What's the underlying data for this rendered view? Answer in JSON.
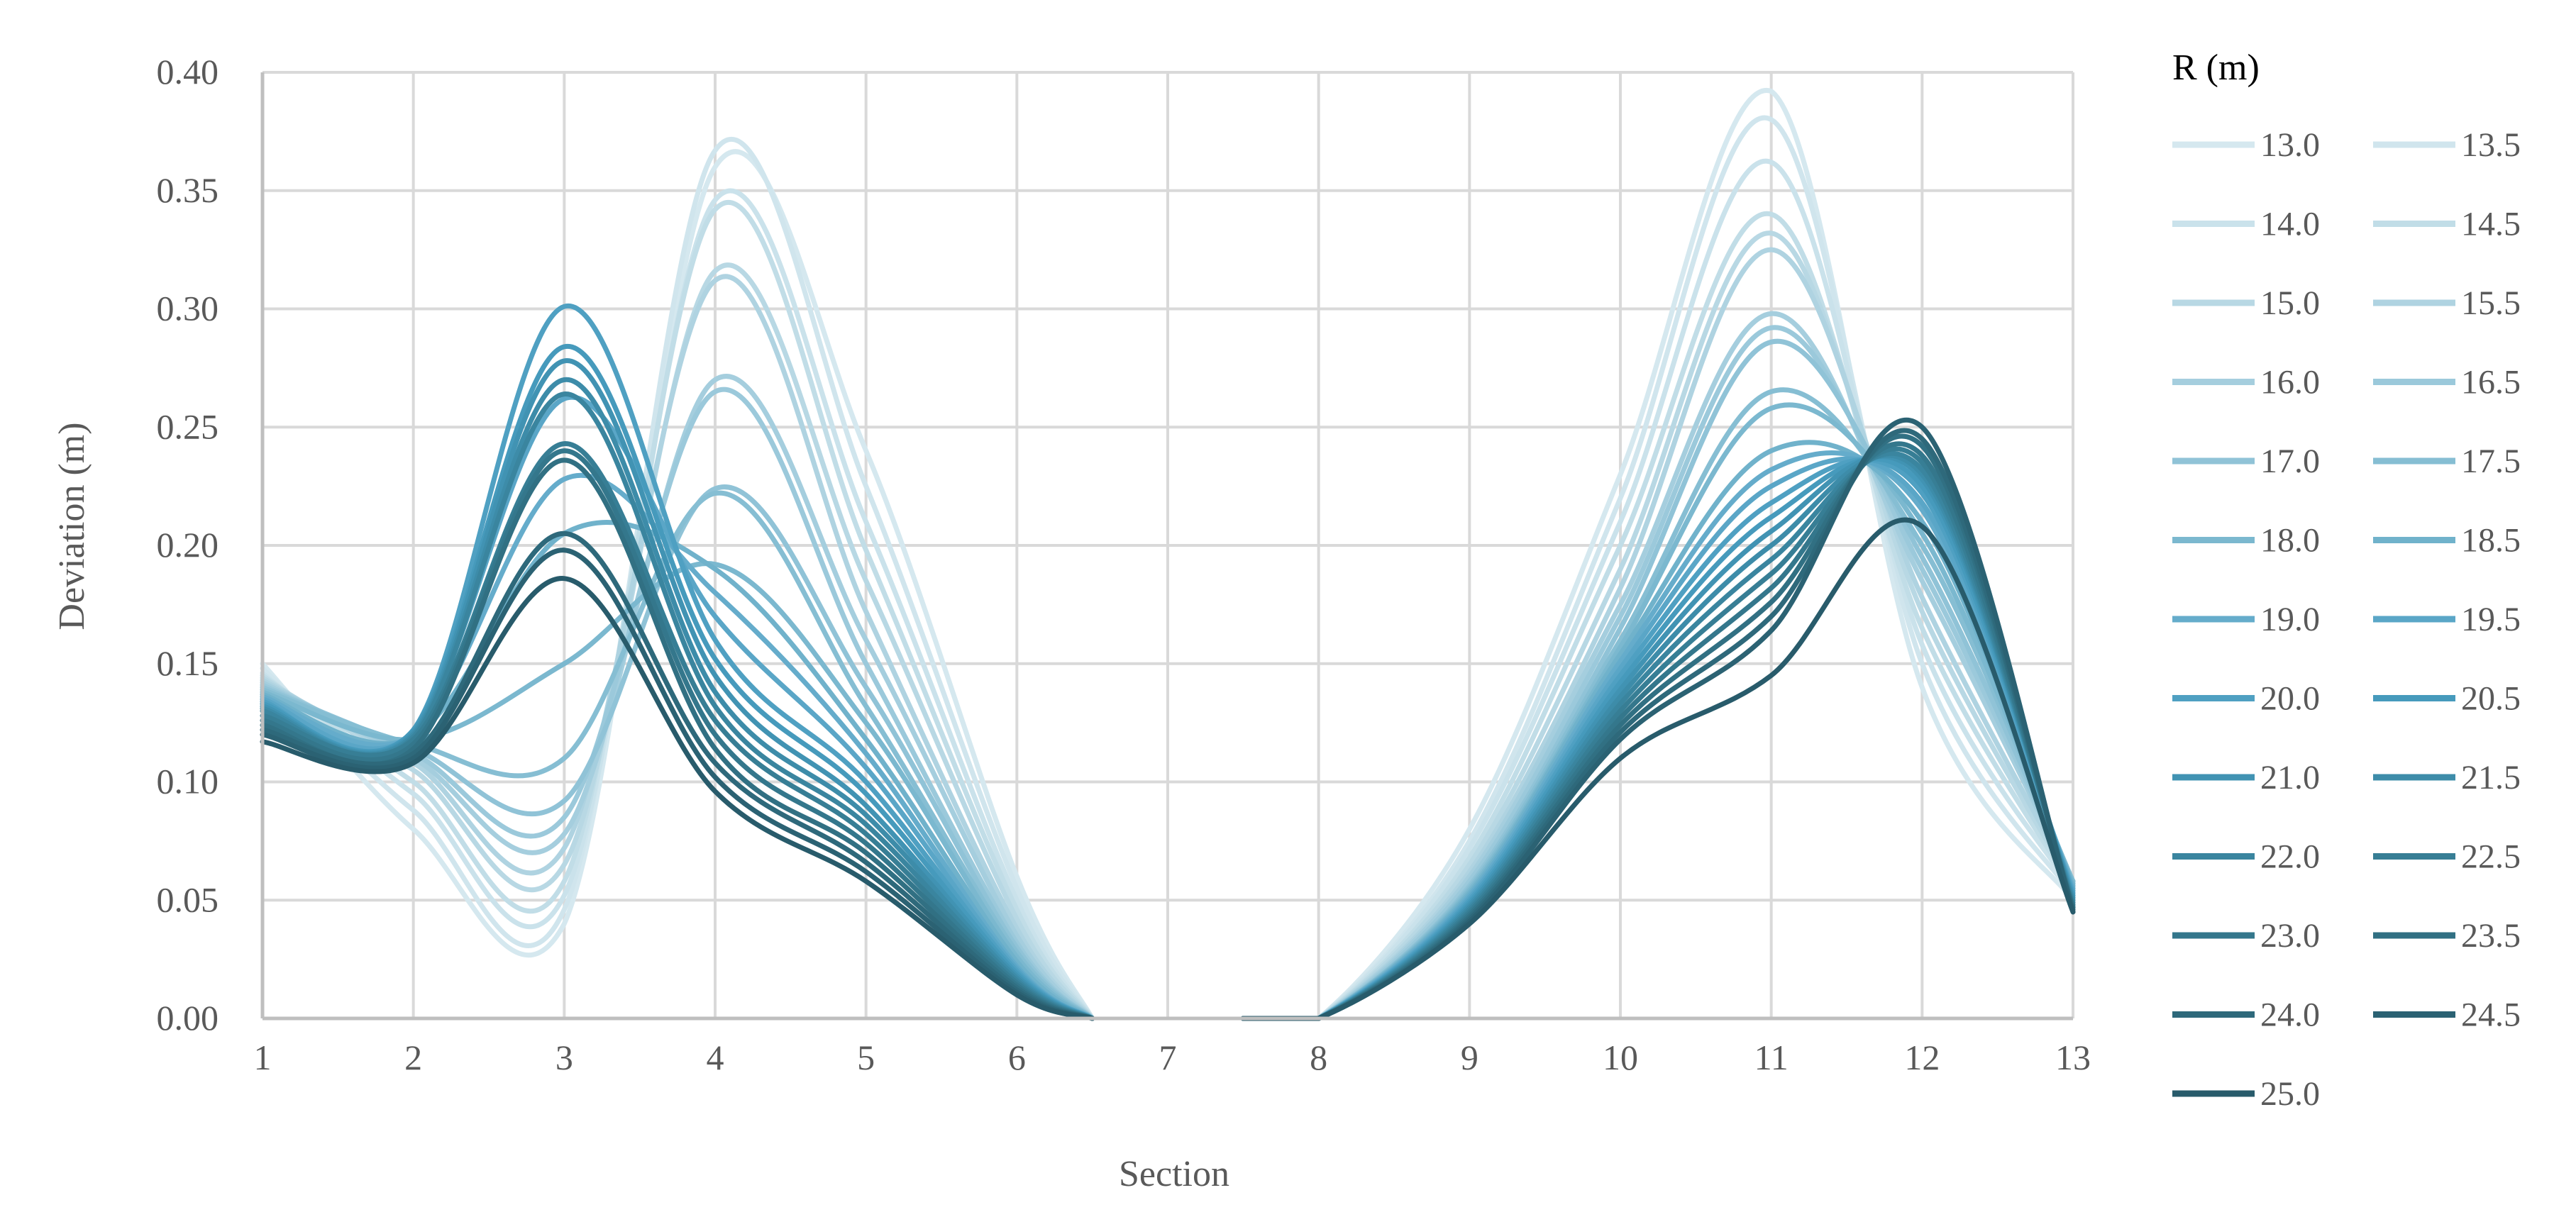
{
  "chart_data": {
    "type": "line",
    "title": "",
    "xlabel": "Section",
    "ylabel": "Deviation (m)",
    "xlim": [
      1,
      13
    ],
    "ylim": [
      0,
      0.4
    ],
    "x_ticks": [
      "1",
      "2",
      "3",
      "4",
      "5",
      "6",
      "7",
      "8",
      "9",
      "10",
      "11",
      "12",
      "13"
    ],
    "y_ticks": [
      "0.00",
      "0.05",
      "0.10",
      "0.15",
      "0.20",
      "0.25",
      "0.30",
      "0.35",
      "0.40"
    ],
    "grid": true,
    "legend_title": "R (m)",
    "legend_position": "right",
    "x": [
      1,
      2,
      3,
      4,
      5,
      6,
      6.5,
      7,
      7.5,
      8,
      9,
      10,
      11,
      12,
      13
    ],
    "series": [
      {
        "name": "13.0",
        "color": "#d5e8ef",
        "values": [
          0.15,
          0.08,
          0.04,
          0.36,
          0.24,
          0.06,
          0.0,
          0.0,
          0.0,
          0.0,
          0.08,
          0.23,
          0.392,
          0.14,
          0.05
        ]
      },
      {
        "name": "13.5",
        "color": "#d0e5ed",
        "values": [
          0.148,
          0.088,
          0.046,
          0.367,
          0.225,
          0.055,
          0.0,
          0.0,
          0.0,
          0.0,
          0.075,
          0.22,
          0.38,
          0.15,
          0.052
        ]
      },
      {
        "name": "14.0",
        "color": "#cae2eb",
        "values": [
          0.146,
          0.095,
          0.052,
          0.346,
          0.21,
          0.05,
          0.0,
          0.0,
          0.0,
          0.0,
          0.072,
          0.21,
          0.362,
          0.158,
          0.054
        ]
      },
      {
        "name": "14.5",
        "color": "#c1dde7",
        "values": [
          0.145,
          0.1,
          0.058,
          0.342,
          0.198,
          0.046,
          0.0,
          0.0,
          0.0,
          0.0,
          0.068,
          0.2,
          0.34,
          0.165,
          0.055
        ]
      },
      {
        "name": "15.0",
        "color": "#b8d8e4",
        "values": [
          0.144,
          0.105,
          0.065,
          0.316,
          0.185,
          0.042,
          0.0,
          0.0,
          0.0,
          0.0,
          0.065,
          0.19,
          0.332,
          0.172,
          0.056
        ]
      },
      {
        "name": "15.5",
        "color": "#afd3e1",
        "values": [
          0.143,
          0.108,
          0.072,
          0.312,
          0.172,
          0.038,
          0.0,
          0.0,
          0.0,
          0.0,
          0.062,
          0.182,
          0.325,
          0.178,
          0.057
        ]
      },
      {
        "name": "16.0",
        "color": "#a5cede",
        "values": [
          0.142,
          0.11,
          0.078,
          0.27,
          0.16,
          0.035,
          0.0,
          0.0,
          0.0,
          0.0,
          0.06,
          0.175,
          0.298,
          0.185,
          0.058
        ]
      },
      {
        "name": "16.5",
        "color": "#9bc9db",
        "values": [
          0.141,
          0.112,
          0.085,
          0.265,
          0.15,
          0.032,
          0.0,
          0.0,
          0.0,
          0.0,
          0.058,
          0.17,
          0.292,
          0.19,
          0.058
        ]
      },
      {
        "name": "17.0",
        "color": "#90c3d7",
        "values": [
          0.14,
          0.114,
          0.092,
          0.224,
          0.14,
          0.03,
          0.0,
          0.0,
          0.0,
          0.0,
          0.056,
          0.165,
          0.286,
          0.195,
          0.058
        ]
      },
      {
        "name": "17.5",
        "color": "#86bed3",
        "values": [
          0.139,
          0.116,
          0.11,
          0.222,
          0.132,
          0.028,
          0.0,
          0.0,
          0.0,
          0.0,
          0.055,
          0.16,
          0.265,
          0.2,
          0.058
        ]
      },
      {
        "name": "18.0",
        "color": "#7bb8cf",
        "values": [
          0.138,
          0.118,
          0.15,
          0.192,
          0.125,
          0.026,
          0.0,
          0.0,
          0.0,
          0.0,
          0.054,
          0.157,
          0.258,
          0.205,
          0.057
        ]
      },
      {
        "name": "18.5",
        "color": "#70b2cb",
        "values": [
          0.137,
          0.119,
          0.205,
          0.19,
          0.118,
          0.024,
          0.0,
          0.0,
          0.0,
          0.0,
          0.053,
          0.154,
          0.24,
          0.21,
          0.056
        ]
      },
      {
        "name": "19.0",
        "color": "#65accb",
        "values": [
          0.136,
          0.12,
          0.228,
          0.18,
          0.112,
          0.022,
          0.0,
          0.0,
          0.0,
          0.0,
          0.052,
          0.151,
          0.232,
          0.215,
          0.055
        ]
      },
      {
        "name": "19.5",
        "color": "#5aa6c7",
        "values": [
          0.135,
          0.121,
          0.262,
          0.17,
          0.106,
          0.021,
          0.0,
          0.0,
          0.0,
          0.0,
          0.051,
          0.148,
          0.225,
          0.218,
          0.054
        ]
      },
      {
        "name": "20.0",
        "color": "#4fa0c2",
        "values": [
          0.134,
          0.122,
          0.301,
          0.16,
          0.1,
          0.02,
          0.0,
          0.0,
          0.0,
          0.0,
          0.05,
          0.145,
          0.218,
          0.222,
          0.053
        ]
      },
      {
        "name": "20.5",
        "color": "#469abc",
        "values": [
          0.133,
          0.122,
          0.284,
          0.152,
          0.095,
          0.019,
          0.0,
          0.0,
          0.0,
          0.0,
          0.049,
          0.142,
          0.212,
          0.225,
          0.052
        ]
      },
      {
        "name": "21.0",
        "color": "#4193b3",
        "values": [
          0.132,
          0.121,
          0.278,
          0.145,
          0.09,
          0.018,
          0.0,
          0.0,
          0.0,
          0.0,
          0.048,
          0.139,
          0.206,
          0.228,
          0.051
        ]
      },
      {
        "name": "21.5",
        "color": "#3d8ca9",
        "values": [
          0.131,
          0.12,
          0.27,
          0.138,
          0.086,
          0.017,
          0.0,
          0.0,
          0.0,
          0.0,
          0.047,
          0.136,
          0.2,
          0.23,
          0.05
        ]
      },
      {
        "name": "22.0",
        "color": "#3a859f",
        "values": [
          0.13,
          0.119,
          0.264,
          0.132,
          0.082,
          0.016,
          0.0,
          0.0,
          0.0,
          0.0,
          0.046,
          0.133,
          0.194,
          0.232,
          0.049
        ]
      },
      {
        "name": "22.5",
        "color": "#377e95",
        "values": [
          0.128,
          0.118,
          0.243,
          0.126,
          0.078,
          0.015,
          0.0,
          0.0,
          0.0,
          0.0,
          0.045,
          0.13,
          0.188,
          0.235,
          0.048
        ]
      },
      {
        "name": "23.0",
        "color": "#34778c",
        "values": [
          0.126,
          0.116,
          0.24,
          0.12,
          0.074,
          0.014,
          0.0,
          0.0,
          0.0,
          0.0,
          0.044,
          0.127,
          0.182,
          0.238,
          0.047
        ]
      },
      {
        "name": "23.5",
        "color": "#317083",
        "values": [
          0.124,
          0.114,
          0.236,
          0.114,
          0.07,
          0.013,
          0.0,
          0.0,
          0.0,
          0.0,
          0.043,
          0.124,
          0.176,
          0.242,
          0.047
        ]
      },
      {
        "name": "24.0",
        "color": "#2e697b",
        "values": [
          0.122,
          0.112,
          0.205,
          0.108,
          0.066,
          0.012,
          0.0,
          0.0,
          0.0,
          0.0,
          0.042,
          0.121,
          0.17,
          0.245,
          0.046
        ]
      },
      {
        "name": "24.5",
        "color": "#2b6273",
        "values": [
          0.12,
          0.11,
          0.198,
          0.102,
          0.062,
          0.011,
          0.0,
          0.0,
          0.0,
          0.0,
          0.041,
          0.118,
          0.164,
          0.25,
          0.045
        ]
      },
      {
        "name": "25.0",
        "color": "#285b6b",
        "values": [
          0.117,
          0.108,
          0.186,
          0.096,
          0.058,
          0.01,
          0.0,
          0.0,
          0.0,
          0.0,
          0.04,
          0.11,
          0.145,
          0.208,
          0.045
        ]
      }
    ]
  }
}
